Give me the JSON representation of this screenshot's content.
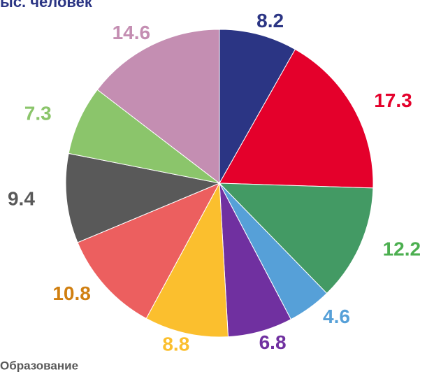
{
  "chart_data": {
    "type": "pie",
    "title": "ыс. человек",
    "annotation": "Образование",
    "values": [
      8.2,
      17.3,
      12.2,
      4.6,
      6.8,
      8.8,
      10.8,
      9.4,
      7.3,
      14.6
    ],
    "colors": [
      "#2b3584",
      "#e4002b",
      "#439a64",
      "#56a0d8",
      "#7030a0",
      "#fbbf2e",
      "#ec5f5f",
      "#595959",
      "#8bc56b",
      "#c48eb2"
    ],
    "label_colors": [
      "#2b3584",
      "#e4002b",
      "#4caf50",
      "#56a0d8",
      "#7030a0",
      "#fbbf2e",
      "#d07f10",
      "#595959",
      "#8bc56b",
      "#c48eb2"
    ]
  }
}
